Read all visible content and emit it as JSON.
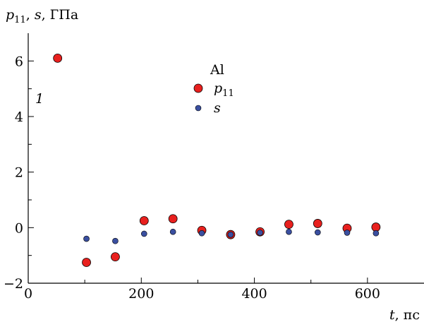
{
  "chart_data": {
    "type": "scatter",
    "xlabel": {
      "italic": "t",
      "text": ", пс"
    },
    "ylabel": {
      "p_main": "p",
      "p_sub": "11",
      "rest_italic": "s",
      "sep1": ", ",
      "sep2": ", ",
      "unit": "ГПа"
    },
    "xlim": [
      0,
      700
    ],
    "ylim": [
      -2,
      7
    ],
    "x_ticks": [
      "0",
      "200",
      "400",
      "600"
    ],
    "y_ticks": [
      "−2",
      "0",
      "2",
      "4",
      "6"
    ],
    "annotation": "1",
    "legend": {
      "title": "Al",
      "placement": "top-center",
      "entries": [
        {
          "main": "p",
          "sub": "11",
          "color": "#e8201e"
        },
        {
          "main": "s",
          "sub": "",
          "color": "#3a4fa0"
        }
      ]
    },
    "series": [
      {
        "name": "p11",
        "color": "#e8201e",
        "marker_radius": 6,
        "x": [
          52,
          103,
          154,
          205,
          256,
          307,
          358,
          410,
          461,
          512,
          564,
          615
        ],
        "y": [
          6.1,
          -1.25,
          -1.05,
          0.25,
          0.32,
          -0.1,
          -0.25,
          -0.15,
          0.12,
          0.15,
          -0.02,
          0.02
        ]
      },
      {
        "name": "s",
        "color": "#3a4fa0",
        "marker_radius": 4,
        "x": [
          103,
          154,
          205,
          256,
          307,
          358,
          410,
          461,
          512,
          564,
          615
        ],
        "y": [
          -0.4,
          -0.48,
          -0.22,
          -0.15,
          -0.2,
          -0.25,
          -0.18,
          -0.15,
          -0.17,
          -0.18,
          -0.2
        ]
      }
    ]
  }
}
